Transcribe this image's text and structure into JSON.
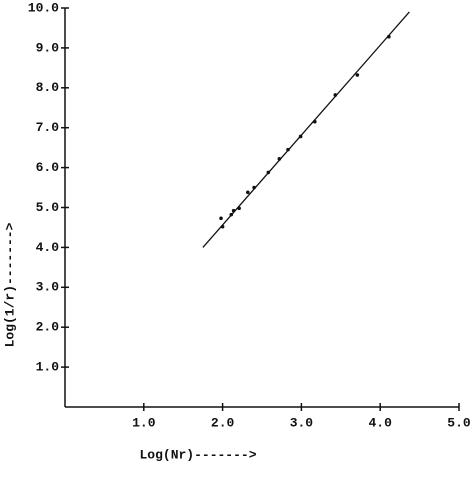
{
  "chart_data": {
    "type": "scatter",
    "xlabel": "Log(Nr)------->",
    "ylabel": "Log(1/r)------->",
    "x": [
      1.98,
      2.0,
      2.11,
      2.14,
      2.21,
      2.32,
      2.4,
      2.58,
      2.72,
      2.83,
      2.99,
      3.17,
      3.43,
      3.71,
      4.11
    ],
    "values": [
      4.73,
      4.52,
      4.82,
      4.92,
      4.98,
      5.38,
      5.5,
      5.88,
      6.22,
      6.45,
      6.78,
      7.15,
      7.82,
      8.32,
      9.28
    ],
    "color": "#111111",
    "fit": {
      "x": [
        1.75,
        4.37
      ],
      "values": [
        4.0,
        9.9
      ]
    },
    "xlim": [
      0,
      5
    ],
    "ylim": [
      0,
      10
    ],
    "xticks": [
      {
        "value": 1,
        "label": "1.0"
      },
      {
        "value": 2,
        "label": "2.0"
      },
      {
        "value": 3,
        "label": "3.0"
      },
      {
        "value": 4,
        "label": "4.0"
      },
      {
        "value": 5,
        "label": "5.0"
      }
    ],
    "yticks": [
      {
        "value": 1,
        "label": "1.0"
      },
      {
        "value": 2,
        "label": "2.0"
      },
      {
        "value": 3,
        "label": "3.0"
      },
      {
        "value": 4,
        "label": "4.0"
      },
      {
        "value": 5,
        "label": "5.0"
      },
      {
        "value": 6,
        "label": "6.0"
      },
      {
        "value": 7,
        "label": "7.0"
      },
      {
        "value": 8,
        "label": "8.0"
      },
      {
        "value": 9,
        "label": "9.0"
      },
      {
        "value": 10,
        "label": "10.0"
      }
    ]
  }
}
